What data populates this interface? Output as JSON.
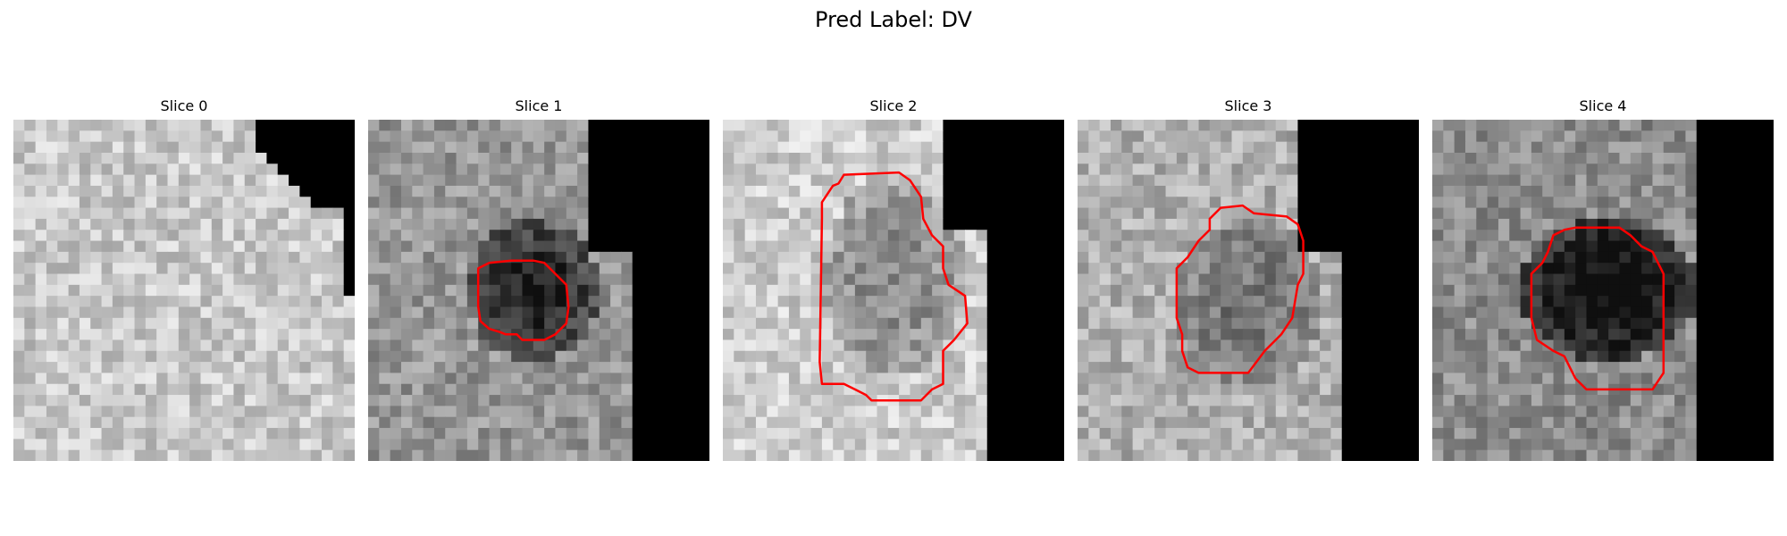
{
  "figure": {
    "suptitle": "Pred Label: DV"
  },
  "panels": [
    {
      "title": "Slice 0",
      "has_contour": false
    },
    {
      "title": "Slice 1",
      "has_contour": true
    },
    {
      "title": "Slice 2",
      "has_contour": true
    },
    {
      "title": "Slice 3",
      "has_contour": true
    },
    {
      "title": "Slice 4",
      "has_contour": true
    }
  ],
  "colors": {
    "contour": "#ff0000",
    "masked": "#000000"
  }
}
